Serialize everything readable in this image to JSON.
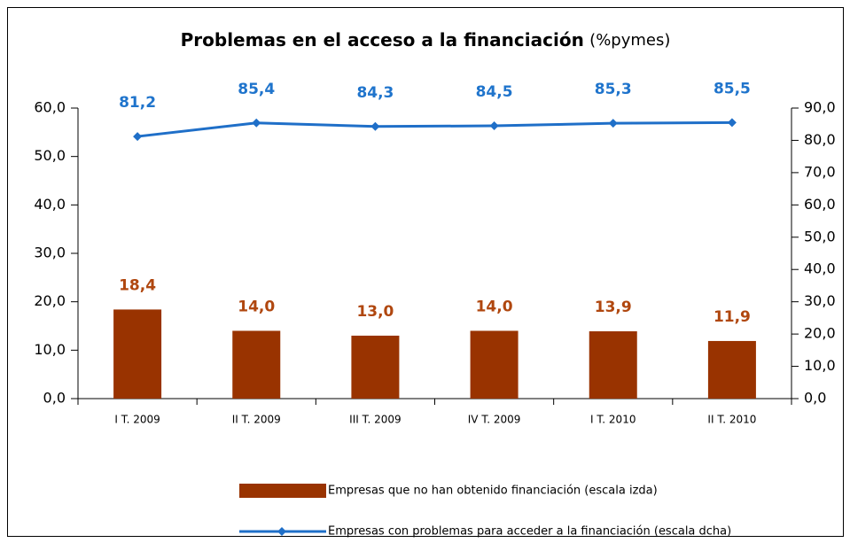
{
  "chart_data": {
    "type": "bar",
    "title": "Problemas en el acceso a la financiación",
    "subtitle": "(%pymes)",
    "categories": [
      "I T. 2009",
      "II T. 2009",
      "III T. 2009",
      "IV T. 2009",
      "I T. 2010",
      "II T. 2010"
    ],
    "series": [
      {
        "name": "Empresas que no han obtenido financiación (escala izda)",
        "type": "bar",
        "color": "#993300",
        "label_color": "#b0470f",
        "values": [
          18.4,
          14.0,
          13.0,
          14.0,
          13.9,
          11.9
        ],
        "value_labels": [
          "18,4",
          "14,0",
          "13,0",
          "14,0",
          "13,9",
          "11,9"
        ]
      },
      {
        "name": "Empresas con problemas para acceder a la financiación (escala dcha)",
        "type": "line",
        "axis": "y2",
        "color": "#1f6fc8",
        "label_color": "#1f74cc",
        "values": [
          81.2,
          85.4,
          84.3,
          84.5,
          85.3,
          85.5
        ],
        "value_labels": [
          "81,2",
          "85,4",
          "84,3",
          "84,5",
          "85,3",
          "85,5"
        ]
      }
    ],
    "ylim": [
      0,
      60
    ],
    "yticks": [
      {
        "value": 0,
        "label": "0,0"
      },
      {
        "value": 10,
        "label": "10,0"
      },
      {
        "value": 20,
        "label": "20,0"
      },
      {
        "value": 30,
        "label": "30,0"
      },
      {
        "value": 40,
        "label": "40,0"
      },
      {
        "value": 50,
        "label": "50,0"
      },
      {
        "value": 60,
        "label": "60,0"
      }
    ],
    "y2lim": [
      0,
      90
    ],
    "y2ticks": [
      {
        "value": 0,
        "label": "0,0"
      },
      {
        "value": 10,
        "label": "10,0"
      },
      {
        "value": 20,
        "label": "20,0"
      },
      {
        "value": 30,
        "label": "30,0"
      },
      {
        "value": 40,
        "label": "40,0"
      },
      {
        "value": 50,
        "label": "50,0"
      },
      {
        "value": 60,
        "label": "60,0"
      },
      {
        "value": 70,
        "label": "70,0"
      },
      {
        "value": 80,
        "label": "80,0"
      },
      {
        "value": 90,
        "label": "90,0"
      }
    ],
    "legend": "bottom"
  }
}
